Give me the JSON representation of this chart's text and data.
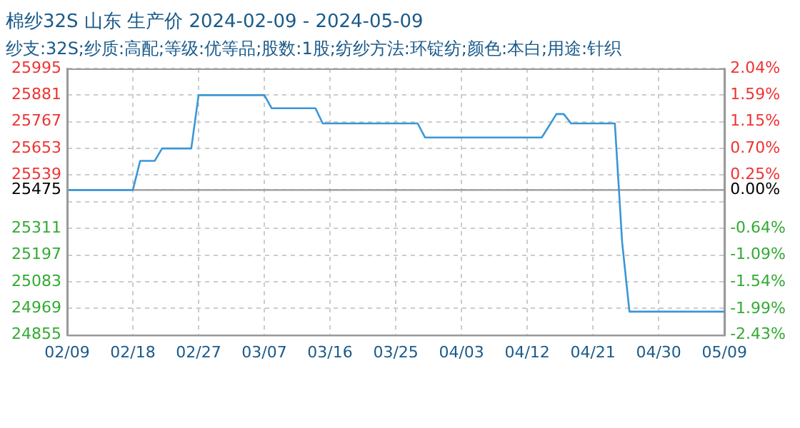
{
  "chart_data": {
    "type": "line",
    "title": "棉纱32S 山东 生产价 2024-02-09 - 2024-05-09",
    "subtitle": "纱支:32S;纱质:高配;等级:优等品;股数:1股;纺纱方法:环锭纺;颜色:本白;用途:针织",
    "series": [
      {
        "color": "#3a96d6",
        "x": [
          "2024-02-09",
          "2024-02-18",
          "2024-02-19",
          "2024-02-21",
          "2024-02-22",
          "2024-02-26",
          "2024-02-27",
          "2024-03-07",
          "2024-03-08",
          "2024-03-14",
          "2024-03-15",
          "2024-03-28",
          "2024-03-29",
          "2024-04-14",
          "2024-04-16",
          "2024-04-17",
          "2024-04-18",
          "2024-04-24",
          "2024-04-25",
          "2024-04-26",
          "2024-05-09"
        ],
        "values": [
          25475,
          25475,
          25600,
          25600,
          25653,
          25653,
          25881,
          25881,
          25825,
          25825,
          25760,
          25760,
          25700,
          25700,
          25800,
          25800,
          25760,
          25760,
          25250,
          24955,
          24955
        ]
      }
    ],
    "xlim": [
      "2024-02-09",
      "2024-05-09"
    ],
    "xticks": [
      {
        "value": "2024-02-09",
        "label": "02/09"
      },
      {
        "value": "2024-02-18",
        "label": "02/18"
      },
      {
        "value": "2024-02-27",
        "label": "02/27"
      },
      {
        "value": "2024-03-07",
        "label": "03/07"
      },
      {
        "value": "2024-03-16",
        "label": "03/16"
      },
      {
        "value": "2024-03-25",
        "label": "03/25"
      },
      {
        "value": "2024-04-03",
        "label": "04/03"
      },
      {
        "value": "2024-04-12",
        "label": "04/12"
      },
      {
        "value": "2024-04-21",
        "label": "04/21"
      },
      {
        "value": "2024-04-30",
        "label": "04/30"
      },
      {
        "value": "2024-05-09",
        "label": "05/09"
      }
    ],
    "ylim": [
      24855,
      25995
    ],
    "yticks": [
      24855,
      24969,
      25083,
      25197,
      25311,
      {
        "value": 25425,
        "label": null
      },
      25475,
      25539,
      25653,
      25767,
      25881,
      25995
    ],
    "y2lim": [
      -2.43,
      2.04
    ],
    "y2ticks": [
      {
        "value": -2.43,
        "label": "-2.43%"
      },
      {
        "value": -1.99,
        "label": "-1.99%"
      },
      {
        "value": -1.54,
        "label": "-1.54%"
      },
      {
        "value": -1.09,
        "label": "-1.09%"
      },
      {
        "value": -0.64,
        "label": "-0.64%"
      },
      {
        "value": 0,
        "label": "0.00%"
      },
      {
        "value": 0.25,
        "label": "0.25%"
      },
      {
        "value": 0.7,
        "label": "0.70%"
      },
      {
        "value": 1.15,
        "label": "1.15%"
      },
      {
        "value": 1.59,
        "label": "1.59%"
      },
      {
        "value": 2.04,
        "label": "2.04%"
      }
    ],
    "ref_lines": [
      {
        "axis": "y",
        "value": 25475,
        "color": "#999999"
      }
    ],
    "grid": true,
    "legend": false,
    "marker": "none",
    "line_style": "solid"
  }
}
